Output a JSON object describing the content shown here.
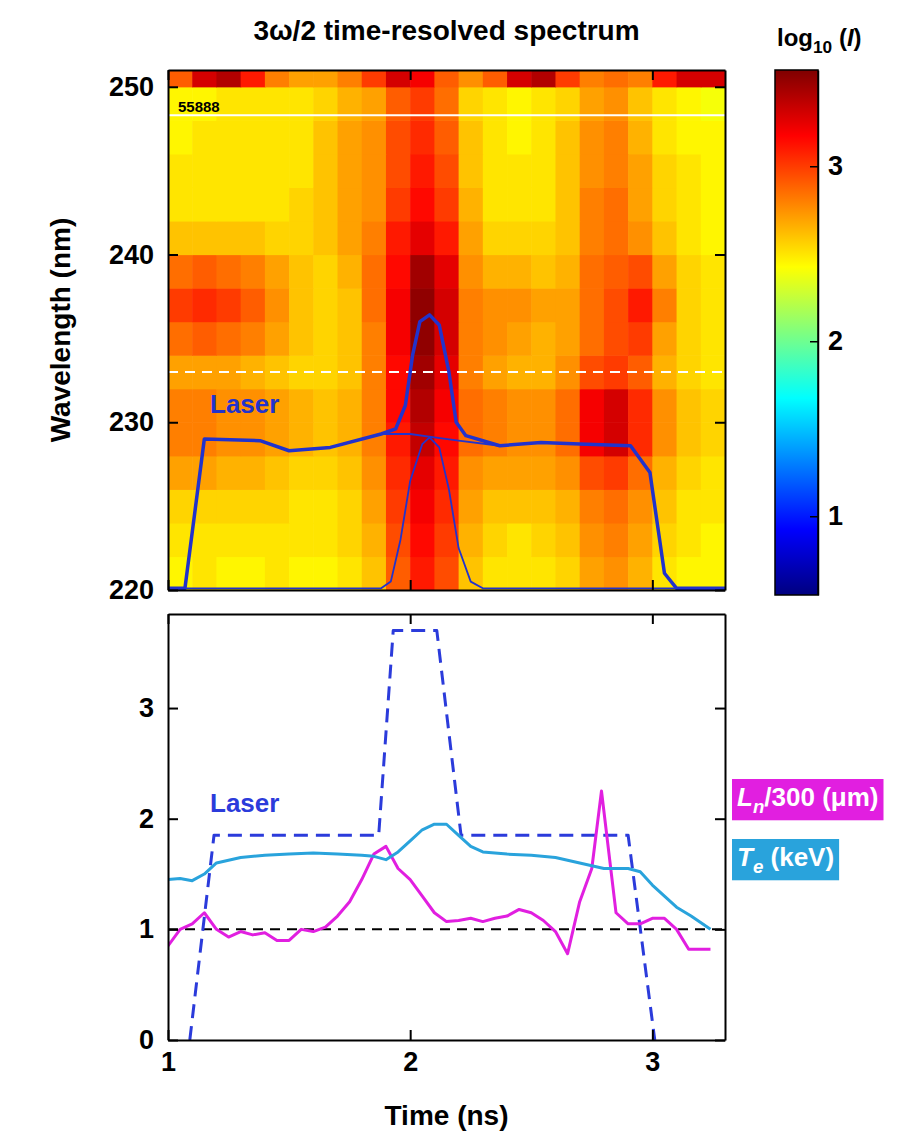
{
  "chart_data": [
    {
      "type": "heatmap",
      "title": "3ω/2 time-resolved spectrum",
      "y_label": "Wavelength (nm)",
      "xlim": [
        1,
        3.3
      ],
      "xticks": [
        1,
        2,
        3
      ],
      "ylim": [
        220,
        251
      ],
      "yticks": [
        220,
        230,
        240,
        250
      ],
      "tick_labels": "y",
      "x": [
        1.05,
        1.15,
        1.25,
        1.35,
        1.45,
        1.55,
        1.65,
        1.75,
        1.85,
        1.95,
        2.05,
        2.15,
        2.25,
        2.35,
        2.45,
        2.55,
        2.65,
        2.75,
        2.85,
        2.95,
        3.05,
        3.15,
        3.25
      ],
      "y": [
        221,
        223,
        225,
        227,
        229,
        231,
        233,
        235,
        237,
        239,
        241,
        243,
        245,
        247,
        249,
        251
      ],
      "cells": [
        [
          2.45,
          2.5,
          2.45,
          2.45,
          2.5,
          2.45,
          2.45,
          2.5,
          2.6,
          2.9,
          3.1,
          2.95,
          2.6,
          2.5,
          2.5,
          2.5,
          2.55,
          2.7,
          2.75,
          2.65,
          2.5,
          2.45,
          2.45
        ],
        [
          2.5,
          2.5,
          2.5,
          2.5,
          2.5,
          2.5,
          2.5,
          2.55,
          2.65,
          2.95,
          3.15,
          3.0,
          2.65,
          2.55,
          2.5,
          2.55,
          2.6,
          2.75,
          2.8,
          2.7,
          2.55,
          2.5,
          2.45
        ],
        [
          2.55,
          2.55,
          2.55,
          2.55,
          2.55,
          2.5,
          2.5,
          2.55,
          2.7,
          3.0,
          3.2,
          3.05,
          2.7,
          2.6,
          2.6,
          2.6,
          2.65,
          2.8,
          2.85,
          2.75,
          2.6,
          2.5,
          2.5
        ],
        [
          2.7,
          2.7,
          2.65,
          2.65,
          2.6,
          2.55,
          2.55,
          2.6,
          2.75,
          3.05,
          3.25,
          3.1,
          2.75,
          2.7,
          2.7,
          2.7,
          2.75,
          2.95,
          3.0,
          2.85,
          2.65,
          2.55,
          2.5
        ],
        [
          2.8,
          2.8,
          2.75,
          2.75,
          2.7,
          2.65,
          2.6,
          2.65,
          2.8,
          3.1,
          3.35,
          3.15,
          2.85,
          2.8,
          2.75,
          2.75,
          2.85,
          3.2,
          3.3,
          3.05,
          2.75,
          2.6,
          2.55
        ],
        [
          2.8,
          2.8,
          2.75,
          2.75,
          2.7,
          2.65,
          2.6,
          2.65,
          2.8,
          3.15,
          3.4,
          3.2,
          2.85,
          2.8,
          2.75,
          2.75,
          2.85,
          3.2,
          3.3,
          3.05,
          2.75,
          2.6,
          2.55
        ],
        [
          2.7,
          2.7,
          2.7,
          2.65,
          2.6,
          2.55,
          2.55,
          2.6,
          2.8,
          3.15,
          3.45,
          3.25,
          2.8,
          2.7,
          2.65,
          2.65,
          2.75,
          2.95,
          3.0,
          2.9,
          2.65,
          2.55,
          2.5
        ],
        [
          2.85,
          2.9,
          2.85,
          2.8,
          2.7,
          2.6,
          2.55,
          2.6,
          2.8,
          3.2,
          3.5,
          3.3,
          2.8,
          2.75,
          2.7,
          2.65,
          2.7,
          2.85,
          2.95,
          3.0,
          2.7,
          2.55,
          2.5
        ],
        [
          3.0,
          3.05,
          3.0,
          2.9,
          2.75,
          2.6,
          2.55,
          2.6,
          2.85,
          3.2,
          3.5,
          3.3,
          2.8,
          2.75,
          2.75,
          2.7,
          2.7,
          2.85,
          2.95,
          3.1,
          2.8,
          2.55,
          2.5
        ],
        [
          2.85,
          2.9,
          2.85,
          2.8,
          2.7,
          2.6,
          2.55,
          2.65,
          2.85,
          3.15,
          3.45,
          3.25,
          2.75,
          2.65,
          2.65,
          2.6,
          2.65,
          2.85,
          2.9,
          2.95,
          2.7,
          2.55,
          2.5
        ],
        [
          2.6,
          2.6,
          2.6,
          2.6,
          2.55,
          2.55,
          2.6,
          2.7,
          2.8,
          3.1,
          3.25,
          3.1,
          2.7,
          2.55,
          2.55,
          2.55,
          2.6,
          2.8,
          2.85,
          2.75,
          2.6,
          2.5,
          2.45
        ],
        [
          2.5,
          2.5,
          2.5,
          2.5,
          2.5,
          2.55,
          2.6,
          2.7,
          2.75,
          3.0,
          3.15,
          3.0,
          2.65,
          2.5,
          2.5,
          2.5,
          2.6,
          2.8,
          2.85,
          2.7,
          2.55,
          2.5,
          2.45
        ],
        [
          2.5,
          2.5,
          2.5,
          2.5,
          2.5,
          2.5,
          2.6,
          2.7,
          2.75,
          2.95,
          3.1,
          2.95,
          2.6,
          2.5,
          2.5,
          2.5,
          2.6,
          2.75,
          2.8,
          2.7,
          2.55,
          2.5,
          2.45
        ],
        [
          2.45,
          2.5,
          2.5,
          2.5,
          2.5,
          2.5,
          2.6,
          2.7,
          2.75,
          2.95,
          3.05,
          2.9,
          2.6,
          2.5,
          2.45,
          2.5,
          2.6,
          2.75,
          2.8,
          2.65,
          2.5,
          2.45,
          2.45
        ],
        [
          2.45,
          2.45,
          2.5,
          2.5,
          2.5,
          2.5,
          2.55,
          2.65,
          2.7,
          2.9,
          3.0,
          2.85,
          2.55,
          2.5,
          2.45,
          2.5,
          2.55,
          2.7,
          2.75,
          2.6,
          2.5,
          2.45,
          2.4
        ],
        [
          2.9,
          3.3,
          3.4,
          3.1,
          2.8,
          2.7,
          2.7,
          2.8,
          3.0,
          3.3,
          3.2,
          2.9,
          2.75,
          2.9,
          3.3,
          3.4,
          3.0,
          2.8,
          2.85,
          2.8,
          3.1,
          3.3,
          3.3
        ]
      ],
      "colorbar": {
        "label": "log10 (I)",
        "range": [
          0.55,
          3.55
        ],
        "ticks": [
          1,
          2,
          3
        ]
      },
      "reference_lines": [
        {
          "value": 248.3,
          "line_style": "solid",
          "color": "#ffffff"
        },
        {
          "value": 233.0,
          "line_style": "dashed",
          "color": "#ffffff"
        }
      ],
      "annotations": [
        "55888"
      ],
      "series": [
        {
          "name": "Laser",
          "type": "line",
          "color": "#2233cc",
          "line_style": "solid",
          "x": [
            1.0,
            1.07,
            1.15,
            1.38,
            1.5,
            1.67,
            1.88,
            1.94,
            1.98,
            2.01,
            2.04,
            2.08,
            2.12,
            2.16,
            2.19,
            2.23,
            2.37,
            2.54,
            2.7,
            2.91,
            2.99,
            3.05,
            3.1,
            3.3
          ],
          "values": [
            220.1,
            220.1,
            229,
            228.9,
            228.3,
            228.5,
            229.3,
            229.6,
            231,
            234,
            236,
            236.4,
            235.8,
            233,
            230,
            229.2,
            228.6,
            228.8,
            228.7,
            228.6,
            227,
            221,
            220.1,
            220.1
          ]
        },
        {
          "type": "line",
          "color": "#2233cc",
          "line_style": "solid",
          "x": [
            1.07,
            1.15,
            1.38,
            1.5,
            1.67,
            1.88,
            2.0,
            2.1,
            2.2,
            2.37,
            2.54,
            2.7,
            2.91,
            2.99,
            3.05,
            3.1
          ],
          "values": [
            220.1,
            229,
            228.9,
            228.3,
            228.5,
            229.3,
            229.3,
            229.1,
            228.9,
            228.6,
            228.8,
            228.7,
            228.6,
            227,
            221,
            220.1
          ]
        },
        {
          "type": "line",
          "color": "#2233cc",
          "line_style": "solid",
          "x": [
            1.0,
            1.88,
            1.92,
            1.96,
            2.0,
            2.05,
            2.08,
            2.12,
            2.16,
            2.2,
            2.25,
            2.3,
            3.3
          ],
          "values": [
            220.1,
            220.1,
            220.5,
            223,
            226.5,
            228.7,
            229.1,
            228.5,
            226,
            222.5,
            220.5,
            220.1,
            220.1
          ]
        }
      ]
    },
    {
      "type": "line",
      "x_label": "Time (ns)",
      "xlim": [
        1,
        3.3
      ],
      "xticks": [
        1,
        2,
        3
      ],
      "ylim": [
        0,
        3.85
      ],
      "yticks": [
        0,
        1,
        2,
        3
      ],
      "reference_lines": [
        {
          "value": 1,
          "line_style": "dashed",
          "color": "#000000"
        }
      ],
      "series": [
        {
          "name": "Laser",
          "color": "#2b3bdb",
          "line_style": "dashed",
          "x": [
            1.09,
            1.19,
            1.87,
            1.93,
            2.11,
            2.21,
            2.9,
            3.01
          ],
          "values": [
            0,
            1.85,
            1.85,
            3.7,
            3.7,
            1.85,
            1.85,
            0
          ]
        },
        {
          "name": "Ln/300 (μm)",
          "color": "#e11fe0",
          "line_style": "solid",
          "x": [
            1.0,
            1.05,
            1.1,
            1.15,
            1.2,
            1.25,
            1.3,
            1.35,
            1.4,
            1.45,
            1.5,
            1.55,
            1.6,
            1.65,
            1.7,
            1.75,
            1.8,
            1.85,
            1.9,
            1.95,
            2.0,
            2.05,
            2.1,
            2.15,
            2.2,
            2.25,
            2.3,
            2.35,
            2.4,
            2.45,
            2.5,
            2.55,
            2.6,
            2.65,
            2.7,
            2.75,
            2.79,
            2.85,
            2.9,
            2.95,
            3.0,
            3.05,
            3.1,
            3.15,
            3.24
          ],
          "values": [
            0.85,
            1.0,
            1.05,
            1.15,
            1.0,
            0.93,
            0.98,
            0.95,
            0.97,
            0.9,
            0.9,
            1.0,
            0.98,
            1.02,
            1.12,
            1.25,
            1.45,
            1.68,
            1.75,
            1.55,
            1.45,
            1.3,
            1.15,
            1.07,
            1.08,
            1.1,
            1.07,
            1.1,
            1.12,
            1.18,
            1.15,
            1.08,
            0.98,
            0.78,
            1.25,
            1.55,
            2.25,
            1.15,
            1.05,
            1.05,
            1.1,
            1.1,
            1.0,
            0.82,
            0.82
          ]
        },
        {
          "name": "Te (keV)",
          "color": "#29a3dc",
          "line_style": "solid",
          "x": [
            1.0,
            1.05,
            1.1,
            1.15,
            1.2,
            1.3,
            1.4,
            1.5,
            1.6,
            1.7,
            1.8,
            1.85,
            1.9,
            1.95,
            2.0,
            2.05,
            2.1,
            2.15,
            2.2,
            2.25,
            2.3,
            2.4,
            2.5,
            2.6,
            2.7,
            2.8,
            2.9,
            2.95,
            3.0,
            3.05,
            3.1,
            3.16,
            3.24
          ],
          "values": [
            1.45,
            1.46,
            1.44,
            1.5,
            1.6,
            1.65,
            1.67,
            1.68,
            1.69,
            1.68,
            1.67,
            1.66,
            1.63,
            1.7,
            1.8,
            1.9,
            1.95,
            1.95,
            1.85,
            1.75,
            1.7,
            1.68,
            1.67,
            1.65,
            1.6,
            1.55,
            1.55,
            1.52,
            1.4,
            1.3,
            1.2,
            1.12,
            1.0
          ]
        }
      ]
    }
  ]
}
